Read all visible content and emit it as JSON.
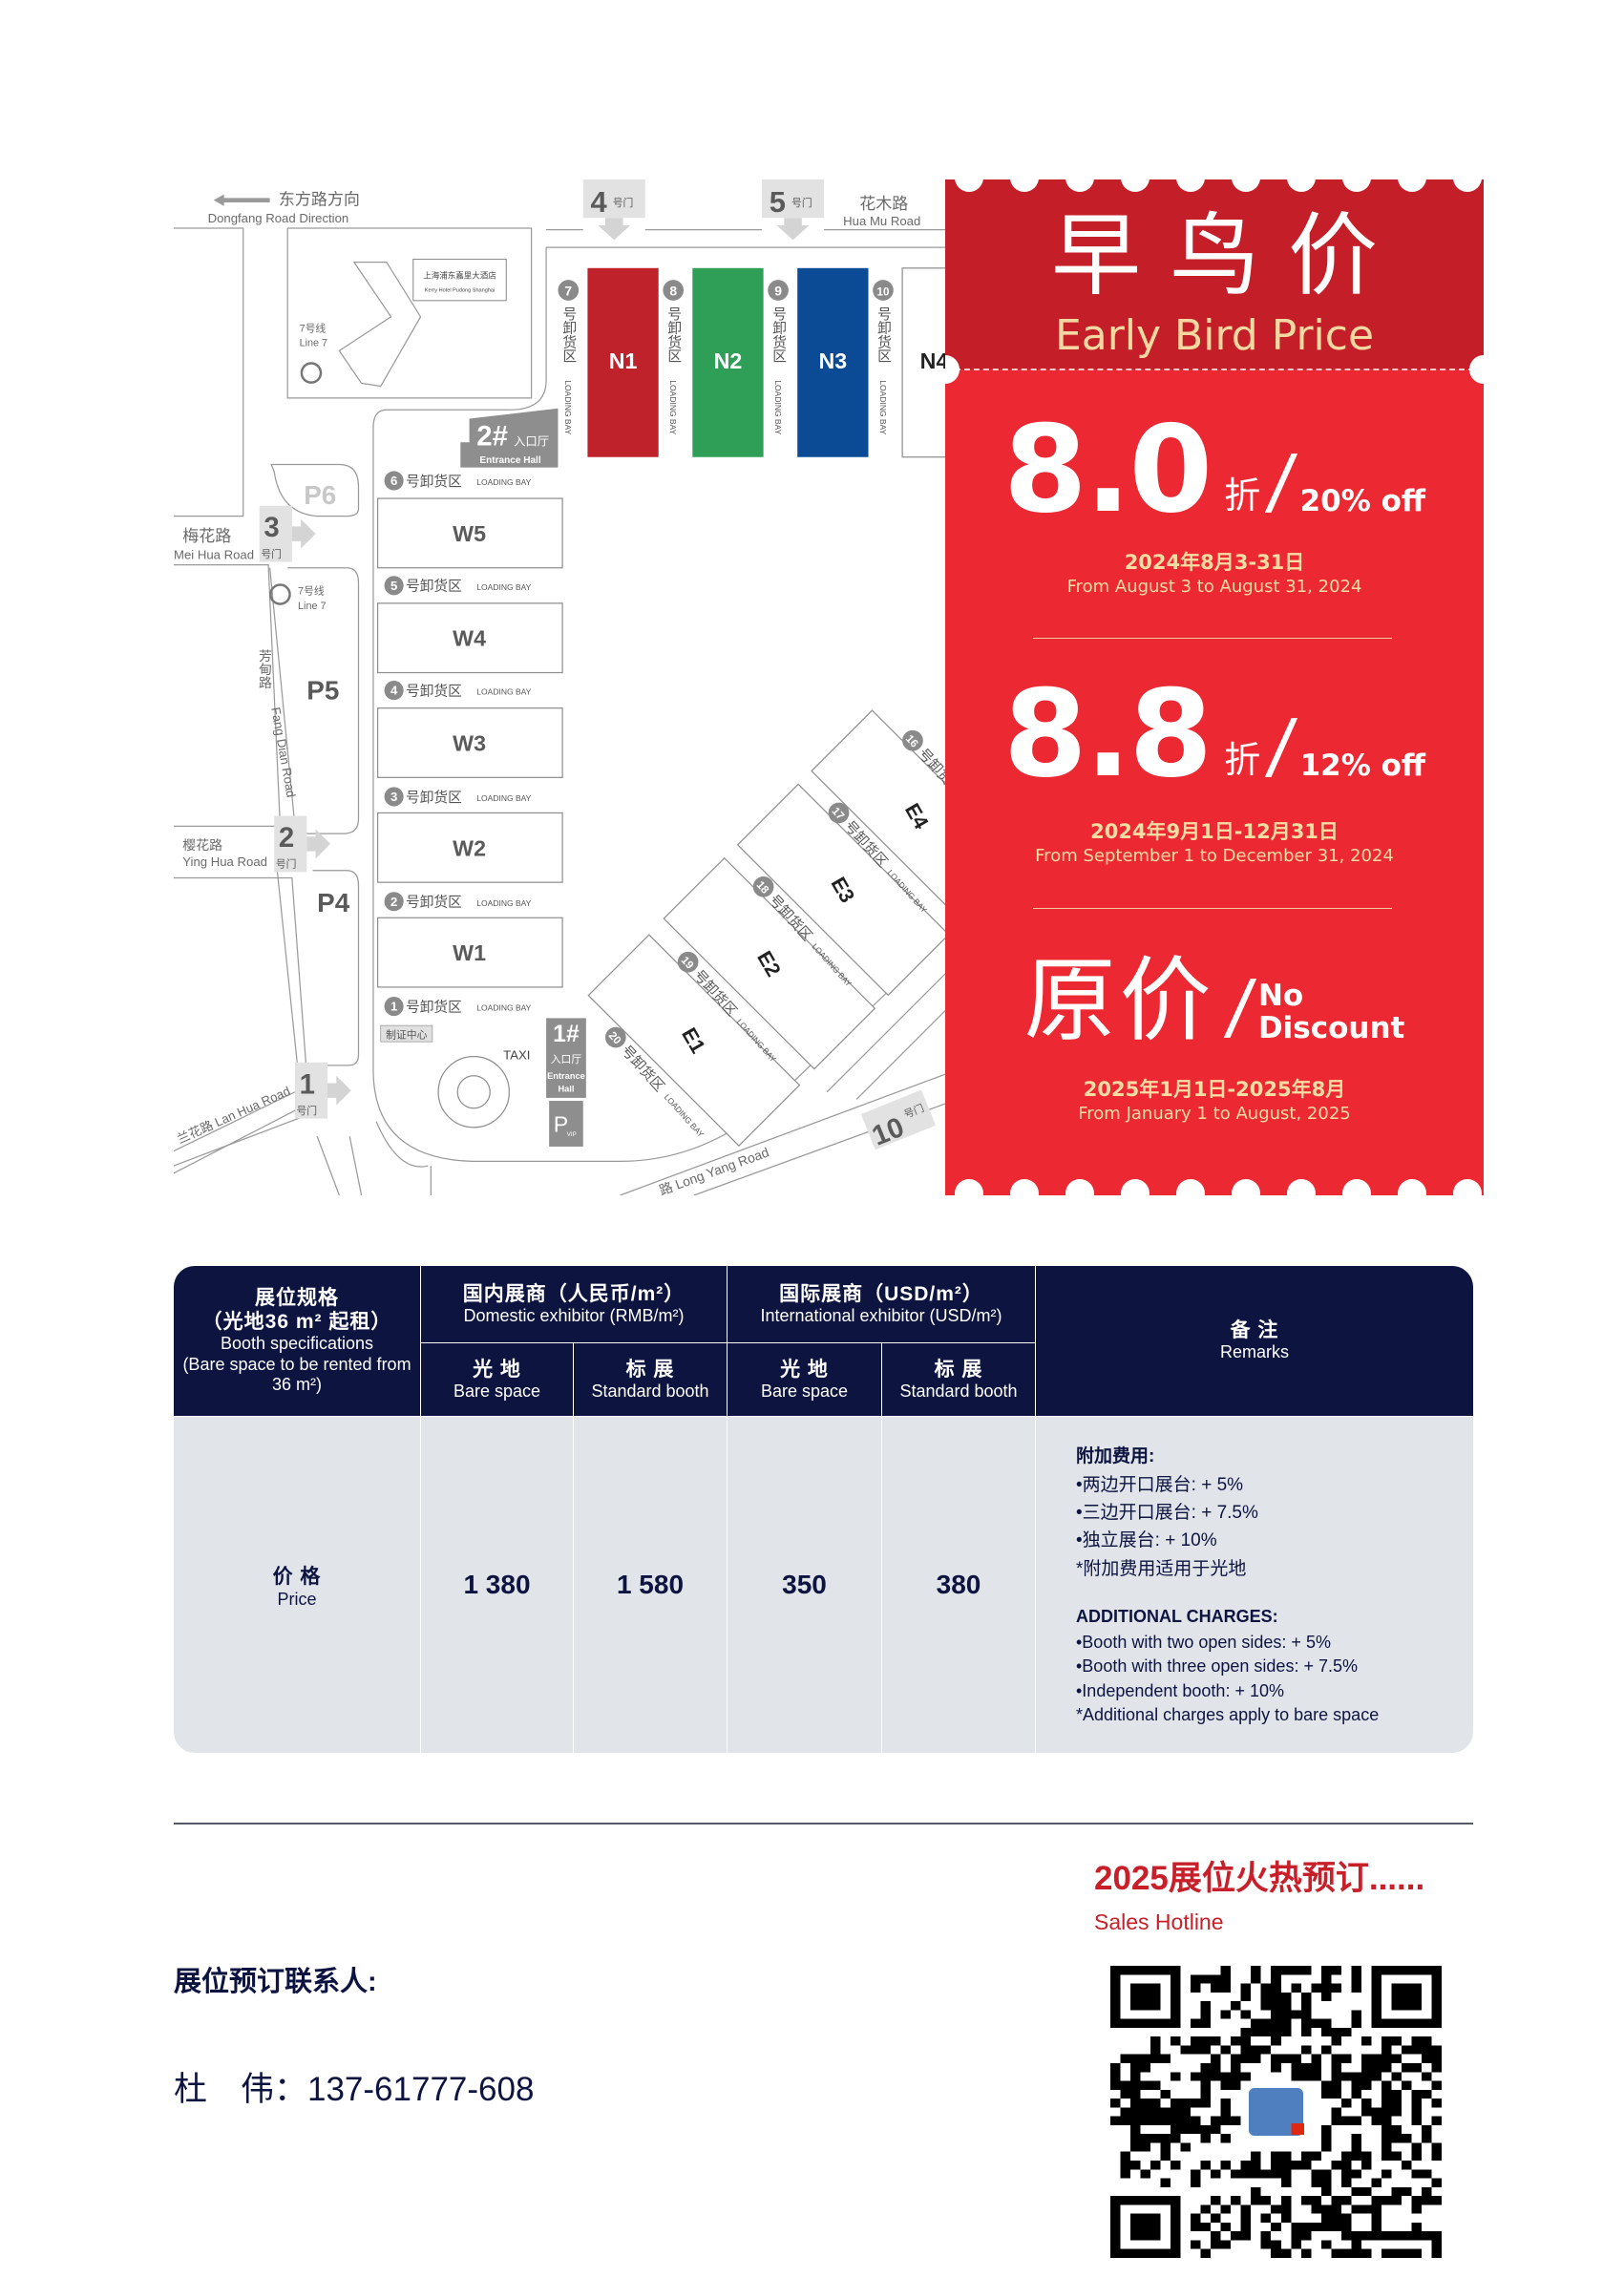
{
  "map": {
    "dongfang_cn": "东方路方向",
    "dongfang_en": "Dongfang Road Direction",
    "huamu_cn": "花木路",
    "huamu_en": "Hua Mu Road",
    "meihua_cn": "梅花路",
    "meihua_en": "Mei Hua Road",
    "yinghua_cn": "樱花路",
    "yinghua_en": "Ying Hua Road",
    "lanhua": "兰花路 Lan Hua Road",
    "fangdian_cn": "芳甸路",
    "fangdian_en": "Fang Dian Road",
    "longyang": "路 Long Yang Road",
    "hotel_cn": "上海浦东嘉里大酒店",
    "hotel_en": "Kerry Hotel Pudong Shanghai",
    "metro_cn": "7号线",
    "metro_en": "Line 7",
    "gate_suffix": "号门",
    "gates": [
      "1",
      "2",
      "3",
      "4",
      "5",
      "10"
    ],
    "north_halls": [
      {
        "name": "N1",
        "color": "#c0222b"
      },
      {
        "name": "N2",
        "color": "#2f9e56"
      },
      {
        "name": "N3",
        "color": "#0b4a94"
      },
      {
        "name": "N4",
        "color": "#ffffff"
      }
    ],
    "west_halls": [
      "W5",
      "W4",
      "W3",
      "W2",
      "W1"
    ],
    "east_halls": [
      "E1",
      "E2",
      "E3",
      "E4"
    ],
    "bay_cn": "号卸货区",
    "bay_en": "LOADING BAY",
    "north_bays": [
      "7",
      "8",
      "9",
      "10"
    ],
    "west_bays": [
      "6",
      "5",
      "4",
      "3",
      "2",
      "1"
    ],
    "east_bays": [
      "20",
      "19",
      "18",
      "17",
      "16"
    ],
    "parking": [
      "P6",
      "P5",
      "P4"
    ],
    "vip_parking": {
      "p": "P",
      "sub": "VIP"
    },
    "entrance2": {
      "num": "2#",
      "cn": "入口厅",
      "en": "Entrance Hall"
    },
    "entrance1": {
      "num": "1#",
      "cn": "入口厅",
      "en1": "Entrance",
      "en2": "Hall"
    },
    "taxi": "TAXI",
    "badge_center": "制证中心"
  },
  "promo": {
    "title_cn": "早鸟价",
    "title_en": "Early Bird Price",
    "tiers": [
      {
        "value": "8.0",
        "unit": "折",
        "off": "20% off",
        "date_cn": "2024年8月3-31日",
        "date_en": "From August 3 to August 31, 2024"
      },
      {
        "value": "8.8",
        "unit": "折",
        "off": "12% off",
        "date_cn": "2024年9月1日-12月31日",
        "date_en": "From September 1 to December 31, 2024"
      },
      {
        "value": "原价",
        "off_line1": "No",
        "off_line2": "Discount",
        "date_cn": "2025年1月1日-2025年8月",
        "date_en": "From January 1 to August, 2025"
      }
    ],
    "colors": {
      "top": "#c41f28",
      "main": "#ec2832",
      "accent": "#f3d9a1"
    }
  },
  "table": {
    "spec_cn": "展位规格",
    "spec_cn2": "（光地36 m² 起租）",
    "spec_en": "Booth specifications",
    "spec_en2": "(Bare space to be rented from 36 m²)",
    "domestic_cn": "国内展商（人民币/m²）",
    "domestic_en": "Domestic exhibitor (RMB/m²)",
    "intl_cn": "国际展商（USD/m²）",
    "intl_en": "International exhibitor (USD/m²)",
    "remarks_cn": "备 注",
    "remarks_en": "Remarks",
    "bare_cn": "光 地",
    "bare_en": "Bare space",
    "std_cn": "标 展",
    "std_en": "Standard booth",
    "price_cn": "价 格",
    "price_en": "Price",
    "prices": [
      "1 380",
      "1 580",
      "350",
      "380"
    ],
    "remarks": {
      "cn_title": "附加费用:",
      "cn_items": [
        "•两边开口展台: + 5%",
        "•三边开口展台: + 7.5%",
        "•独立展台: + 10%",
        "*附加费用适用于光地"
      ],
      "en_title": "ADDITIONAL CHARGES:",
      "en_items": [
        "•Booth with two open sides: + 5%",
        "•Booth with three open sides: + 7.5%",
        "•Independent booth: + 10%",
        "*Additional charges apply to bare space"
      ]
    },
    "colors": {
      "header": "#0d1440",
      "body": "#e1e5ea"
    }
  },
  "footer": {
    "hotline_cn": "2025展位火热预订......",
    "hotline_en": "Sales Hotline",
    "contact_label": "展位预订联系人:",
    "contact_line": "杜　伟：137-61777-608"
  }
}
